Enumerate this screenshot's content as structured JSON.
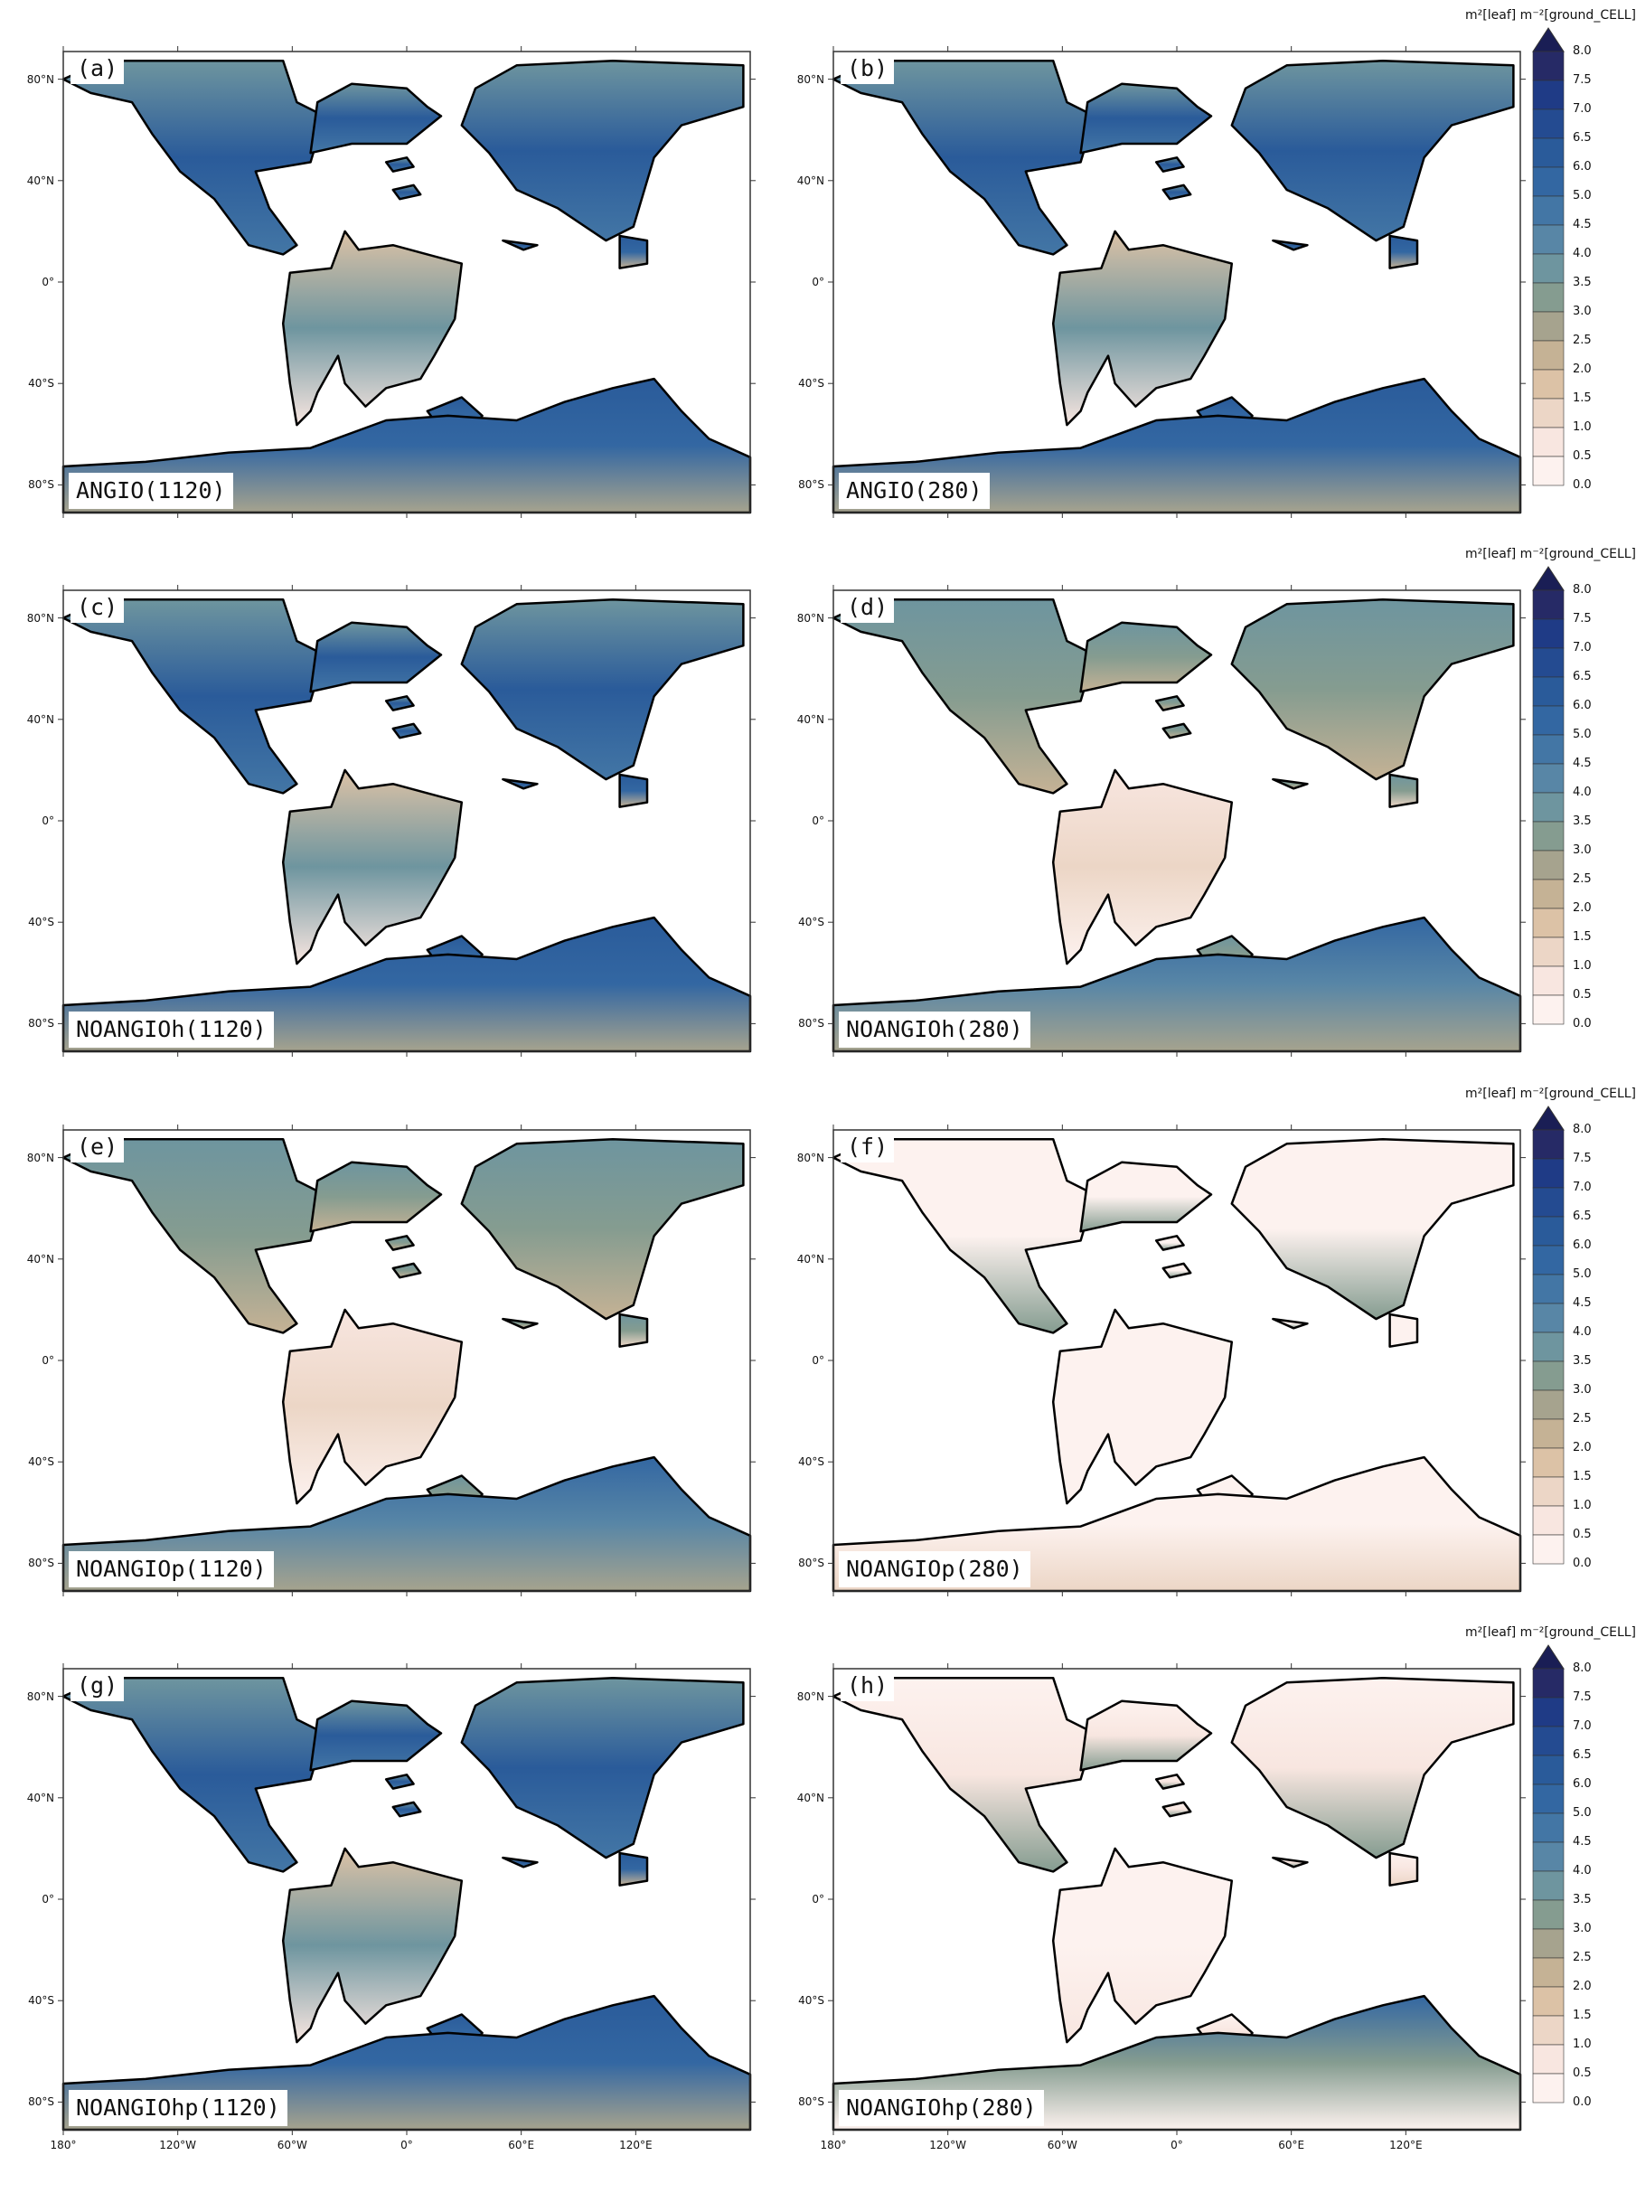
{
  "figure": {
    "colorbar": {
      "unit": "m²[leaf] m⁻²[ground_CELL]",
      "ticks": [
        "8.0",
        "7.5",
        "7.0",
        "6.5",
        "6.0",
        "5.0",
        "4.5",
        "4.0",
        "3.5",
        "3.0",
        "2.5",
        "2.0",
        "1.5",
        "1.0",
        "0.5",
        "0.0"
      ],
      "colors": [
        "#262a66",
        "#1f3b86",
        "#244b91",
        "#2a5b9a",
        "#3367a2",
        "#4376a5",
        "#5886a6",
        "#6e959f",
        "#859c90",
        "#a6a38e",
        "#c5b295",
        "#dcc2a6",
        "#ecd6c6",
        "#f8e6e0",
        "#fdf2ef"
      ],
      "extend_color": "#1a1e55"
    },
    "lat_labels": [
      "80°N",
      "40°N",
      "0°",
      "40°S",
      "80°S"
    ],
    "lon_labels": [
      "180°",
      "120°W",
      "60°W",
      "0°",
      "60°E",
      "120°E"
    ],
    "panels": [
      {
        "id": "a",
        "letter": "(a)",
        "run": "ANGIO(1120)",
        "level": "high"
      },
      {
        "id": "b",
        "letter": "(b)",
        "run": "ANGIO(280)",
        "level": "high"
      },
      {
        "id": "c",
        "letter": "(c)",
        "run": "NOANGIOh(1120)",
        "level": "high"
      },
      {
        "id": "d",
        "letter": "(d)",
        "run": "NOANGIOh(280)",
        "level": "mid"
      },
      {
        "id": "e",
        "letter": "(e)",
        "run": "NOANGIOp(1120)",
        "level": "mid"
      },
      {
        "id": "f",
        "letter": "(f)",
        "run": "NOANGIOp(280)",
        "level": "bare"
      },
      {
        "id": "g",
        "letter": "(g)",
        "run": "NOANGIOhp(1120)",
        "level": "high"
      },
      {
        "id": "h",
        "letter": "(h)",
        "run": "NOANGIOhp(280)",
        "level": "low"
      }
    ]
  }
}
